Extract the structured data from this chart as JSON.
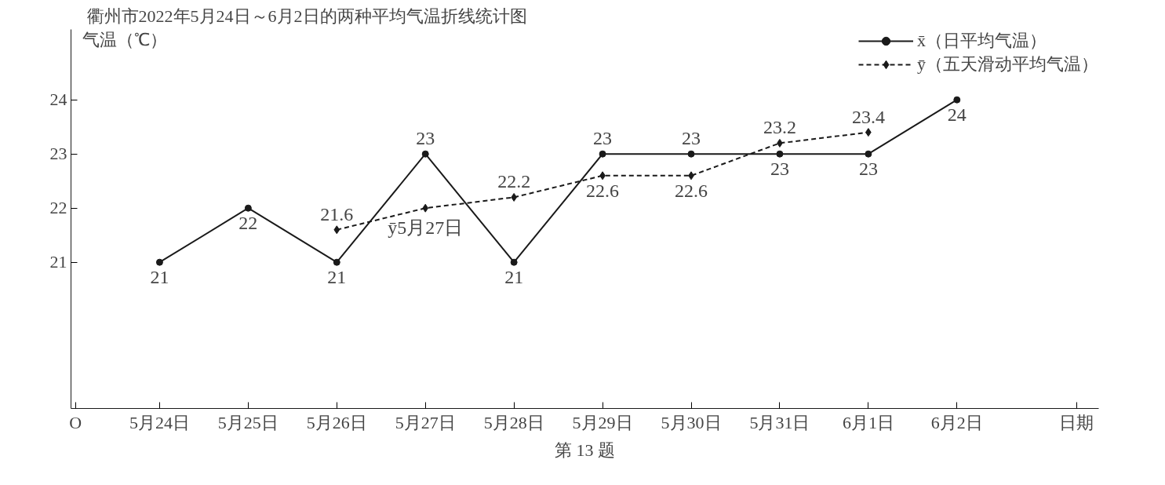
{
  "chart_data": {
    "type": "line",
    "title": "衢州市2022年5月24日～6月2日的两种平均气温折线统计图",
    "xlabel": "日期",
    "ylabel": "气温（℃）",
    "categories": [
      "5月24日",
      "5月25日",
      "5月26日",
      "5月27日",
      "5月28日",
      "5月29日",
      "5月30日",
      "5月31日",
      "6月1日",
      "6月2日"
    ],
    "ylim": [
      18.3,
      25.3
    ],
    "yticks": [
      21,
      22,
      23,
      24
    ],
    "grid": false,
    "legend": "top right",
    "series": [
      {
        "name": "x̄（日平均气温）",
        "color": "#1a1a1a",
        "marker": "circle",
        "line_style": "solid",
        "values": [
          21,
          22,
          21,
          23,
          21,
          23,
          23,
          23,
          23,
          24
        ],
        "value_labels": [
          "21",
          "22",
          "21",
          "23",
          "21",
          "23",
          "23",
          "23",
          "23",
          "24"
        ]
      },
      {
        "name": "ȳ（五天滑动平均气温）",
        "color": "#1a1a1a",
        "marker": "diamond",
        "line_style": "dashed",
        "values": [
          null,
          null,
          21.6,
          22,
          22.2,
          22.6,
          22.6,
          23.2,
          23.4,
          null
        ],
        "value_labels": [
          null,
          null,
          "21.6",
          null,
          "22.2",
          "22.6",
          "22.6",
          "23.2",
          "23.4",
          null
        ]
      }
    ],
    "annotations": [
      {
        "text": "ȳ5月27日",
        "x": "5月27日",
        "y": 22
      },
      "O",
      "第 13 题"
    ]
  }
}
